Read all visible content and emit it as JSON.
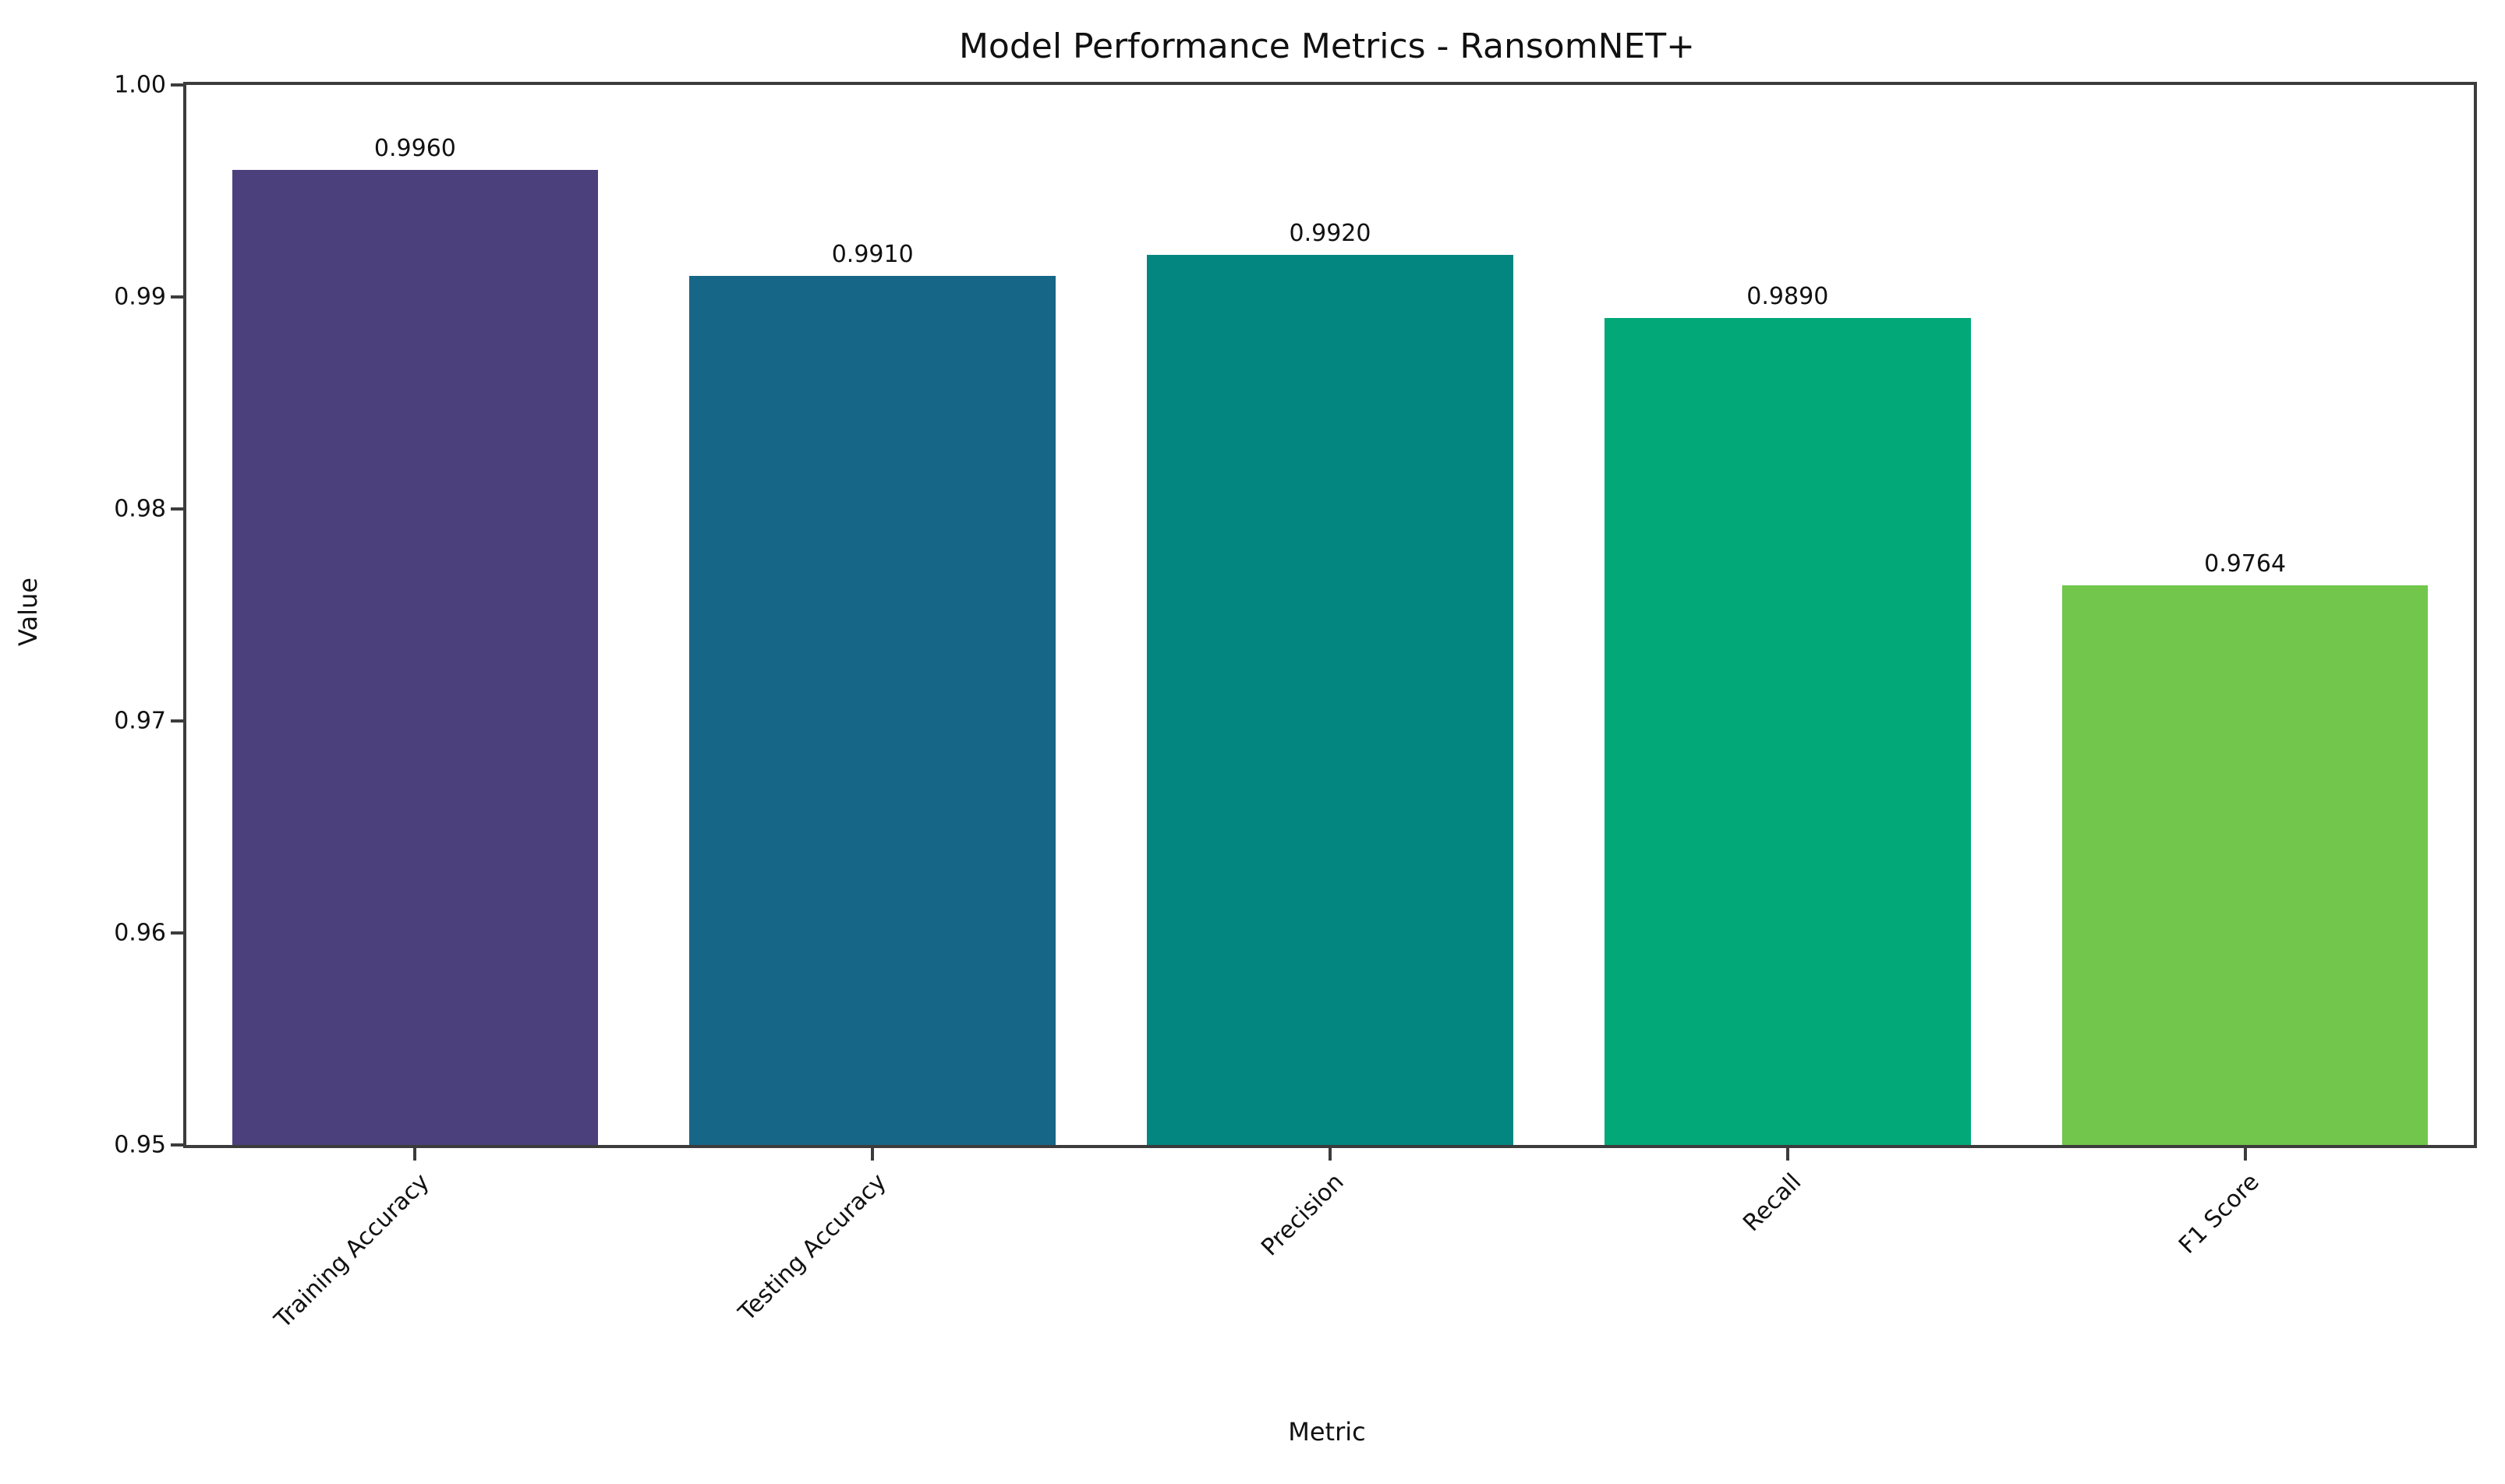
{
  "chart_data": {
    "type": "bar",
    "title": "Model Performance Metrics - RansomNET+",
    "xlabel": "Metric",
    "ylabel": "Value",
    "categories": [
      "Training Accuracy",
      "Testing Accuracy",
      "Precision",
      "Recall",
      "F1 Score"
    ],
    "values": [
      0.996,
      0.991,
      0.992,
      0.989,
      0.9764
    ],
    "value_labels": [
      "0.9960",
      "0.9910",
      "0.9920",
      "0.9890",
      "0.9764"
    ],
    "bar_colors": [
      "#4c407c",
      "#156687",
      "#038680",
      "#02a878",
      "#71c64b"
    ],
    "ylim": [
      0.95,
      1.0
    ],
    "yticks": [
      "0.95",
      "0.96",
      "0.97",
      "0.98",
      "0.99",
      "1.00"
    ],
    "grid": false,
    "legend": null,
    "bar_width_fraction": 0.8,
    "x_label_rotation_deg": 45,
    "spine_color": "#3c3c3c"
  }
}
